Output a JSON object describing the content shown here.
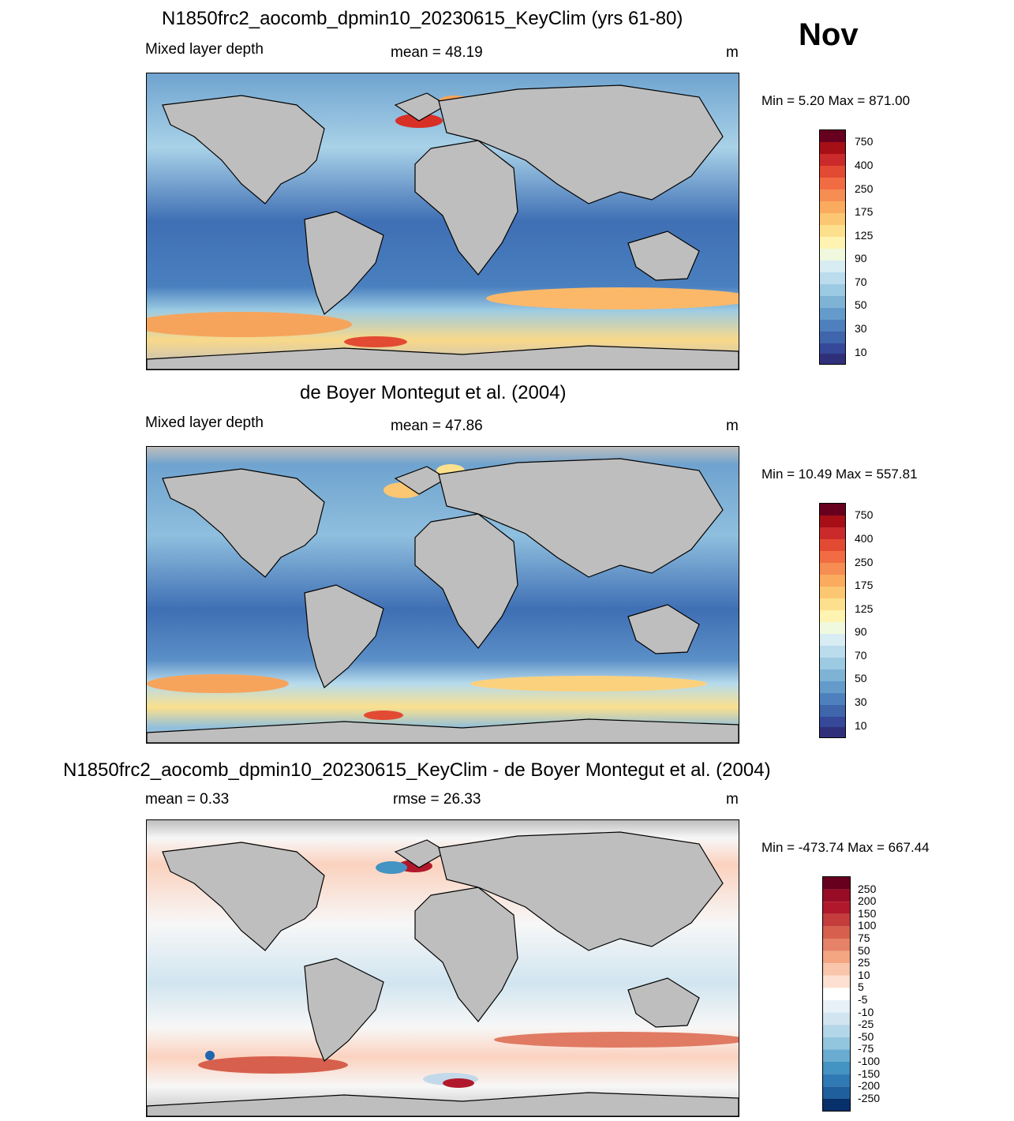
{
  "month": "Nov",
  "panels": [
    {
      "title": "N1850frc2_aocomb_dpmin10_20230615_KeyClim (yrs 61-80)",
      "left_label": "Mixed layer depth",
      "center_label": "mean =  48.19",
      "unit": "m",
      "minmax": "Min =   5.20 Max = 871.00",
      "colorbar_labels": [
        "750",
        "400",
        "250",
        "175",
        "125",
        "90",
        "70",
        "50",
        "30",
        "10"
      ]
    },
    {
      "title": "de Boyer Montegut et al. (2004)",
      "left_label": "Mixed layer depth",
      "center_label": "mean =  47.86",
      "unit": "m",
      "minmax": "Min =  10.49 Max = 557.81",
      "colorbar_labels": [
        "750",
        "400",
        "250",
        "175",
        "125",
        "90",
        "70",
        "50",
        "30",
        "10"
      ]
    },
    {
      "title": "N1850frc2_aocomb_dpmin10_20230615_KeyClim - de Boyer Montegut et al. (2004)",
      "left_label": "mean =   0.33",
      "center_label": "rmse =  26.33",
      "unit": "m",
      "minmax": "Min = -473.74 Max = 667.44",
      "colorbar_labels": [
        "250",
        "200",
        "150",
        "100",
        "75",
        "50",
        "25",
        "10",
        "5",
        "-5",
        "-10",
        "-25",
        "-50",
        "-75",
        "-100",
        "-150",
        "-200",
        "-250"
      ]
    }
  ],
  "colors": {
    "land": "#bebebe",
    "ocean_shallow": "#3a63ad",
    "ocean_mid": "#8fbfde",
    "warm": "#f6a45c",
    "hot": "#d73027",
    "diff_zero": "#f7f7f7",
    "diff_pos": "#f4a582",
    "diff_neg": "#92c5de"
  }
}
